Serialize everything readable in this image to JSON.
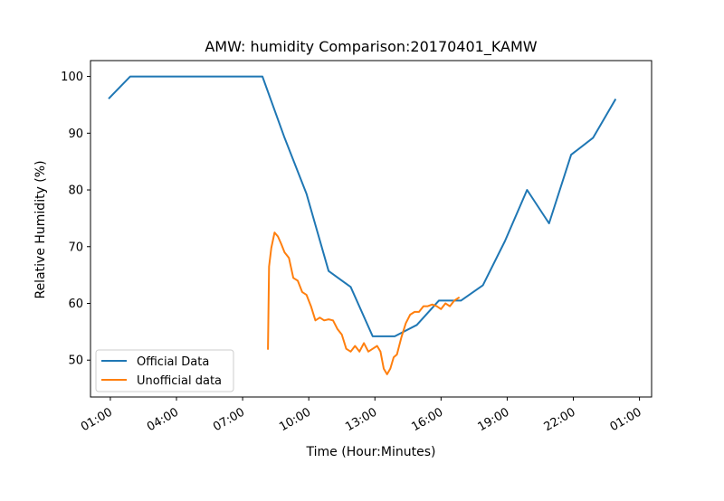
{
  "chart_data": {
    "type": "line",
    "title": "AMW: humidity Comparison:20170401_KAMW",
    "xlabel": "Time (Hour:Minutes)",
    "ylabel": "Relative Humidity (%)",
    "x_unit": "hour",
    "xlim": [
      -0.9,
      24.55
    ],
    "ylim": [
      43.5,
      102.8
    ],
    "xticks": [
      {
        "value": 0,
        "label": "01:00"
      },
      {
        "value": 3,
        "label": "04:00"
      },
      {
        "value": 6,
        "label": "07:00"
      },
      {
        "value": 9,
        "label": "10:00"
      },
      {
        "value": 12,
        "label": "13:00"
      },
      {
        "value": 15,
        "label": "16:00"
      },
      {
        "value": 18,
        "label": "19:00"
      },
      {
        "value": 21,
        "label": "22:00"
      },
      {
        "value": 24,
        "label": "01:00"
      }
    ],
    "yticks": [
      50,
      60,
      70,
      80,
      90,
      100
    ],
    "grid": false,
    "legend_position": "lower-left",
    "series": [
      {
        "name": "Official Data",
        "color": "#1f77b4",
        "x": [
          -0.05,
          0.9,
          1.9,
          2.9,
          3.9,
          4.9,
          5.9,
          6.9,
          7.9,
          8.9,
          9.9,
          10.9,
          11.9,
          12.9,
          13.9,
          14.9,
          15.9,
          16.9,
          17.9,
          18.9,
          19.9,
          20.9,
          21.9,
          22.9
        ],
        "y": [
          96.2,
          100,
          100,
          100,
          100,
          100,
          100,
          100,
          89.2,
          79.3,
          65.7,
          62.9,
          54.2,
          54.2,
          56.2,
          60.5,
          60.5,
          63.2,
          71.0,
          80.0,
          74.1,
          86.2,
          89.2,
          95.9
        ]
      },
      {
        "name": "Unofficial data",
        "color": "#ff7f0e",
        "x": [
          7.15,
          7.2,
          7.3,
          7.45,
          7.6,
          7.75,
          7.9,
          8.1,
          8.3,
          8.5,
          8.7,
          8.9,
          9.1,
          9.3,
          9.5,
          9.7,
          9.9,
          10.1,
          10.3,
          10.5,
          10.7,
          10.9,
          11.1,
          11.3,
          11.5,
          11.7,
          11.9,
          12.1,
          12.25,
          12.4,
          12.55,
          12.7,
          12.85,
          13.0,
          13.2,
          13.4,
          13.6,
          13.8,
          14.0,
          14.2,
          14.4,
          14.6,
          14.8,
          15.0,
          15.2,
          15.4,
          15.6,
          15.8
        ],
        "y": [
          52.0,
          66.5,
          69.8,
          72.5,
          71.8,
          70.5,
          69.0,
          68.0,
          64.5,
          64.0,
          62.0,
          61.5,
          59.5,
          57.0,
          57.5,
          57.0,
          57.2,
          57.0,
          55.5,
          54.5,
          52.0,
          51.5,
          52.5,
          51.5,
          53.0,
          51.5,
          52.0,
          52.5,
          51.5,
          48.5,
          47.5,
          48.5,
          50.5,
          51.0,
          54.0,
          56.5,
          58.0,
          58.5,
          58.5,
          59.5,
          59.5,
          59.8,
          59.5,
          59.0,
          60.0,
          59.5,
          60.5,
          61.0
        ]
      }
    ]
  }
}
